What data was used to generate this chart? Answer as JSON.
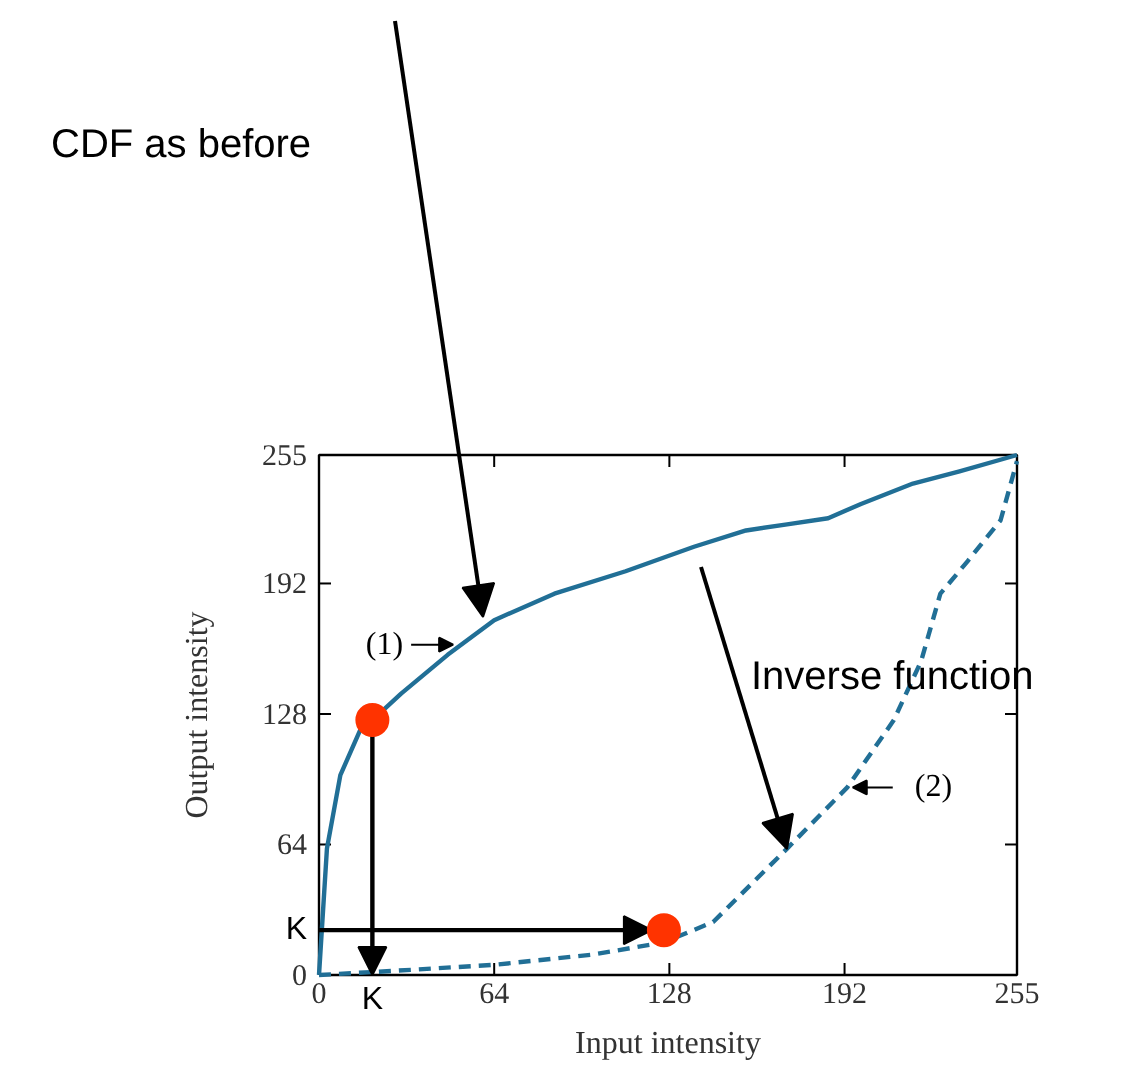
{
  "chart_data": {
    "type": "line",
    "xlabel": "Input intensity",
    "ylabel": "Output intensity",
    "xlim": [
      0,
      255
    ],
    "ylim": [
      0,
      255
    ],
    "xticks": [
      0,
      64,
      128,
      192,
      255
    ],
    "yticks": [
      0,
      64,
      128,
      192,
      255
    ],
    "grid": false,
    "series": [
      {
        "line_style": "solid",
        "color": "#216f96",
        "x": [
          0,
          2.9,
          7.8,
          15,
          19.5,
          30,
          47,
          64,
          86,
          112,
          137,
          156,
          171,
          186,
          198,
          217,
          234,
          255
        ],
        "values": [
          0,
          62,
          98,
          120,
          125,
          138,
          157,
          174,
          187,
          198,
          210,
          218,
          221,
          224,
          231,
          241,
          247,
          255
        ]
      },
      {
        "line_style": "dashed",
        "color": "#216f96",
        "x": [
          0,
          27,
          64,
          100,
          126,
          144,
          171,
          193,
          210,
          220,
          227,
          237,
          249,
          255
        ],
        "values": [
          0,
          2,
          5,
          10,
          16,
          26,
          62,
          92,
          125,
          154,
          187,
          203,
          223,
          252
        ]
      },
      {
        "type": "scatter",
        "marker": "circle",
        "color": "#ff3300",
        "x": [
          19.5,
          126
        ],
        "values": [
          125,
          22
        ]
      }
    ],
    "annotations": [
      "CDF as before",
      "Inverse function",
      {
        "text": "(1)",
        "x": 49,
        "y": 162
      },
      {
        "text": "(2)",
        "x": 195,
        "y": 92
      },
      {
        "text": "K",
        "x": 0,
        "y": 22
      },
      {
        "text": "K",
        "x": 19.5,
        "y": 0
      }
    ]
  }
}
